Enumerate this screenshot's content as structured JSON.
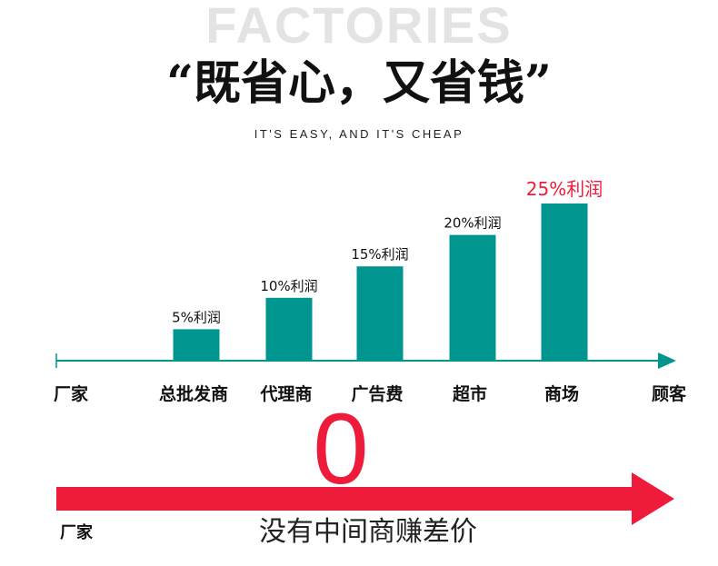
{
  "header": {
    "watermark": "FACTORIES",
    "title": "“既省心，又省钱”",
    "subtitle": "IT'S EASY, AND IT'S CHEAP"
  },
  "chart_data": {
    "type": "bar",
    "start_label": "厂家",
    "end_label": "顾客",
    "categories": [
      "总批发商",
      "代理商",
      "广告费",
      "超市",
      "商场"
    ],
    "values": [
      5,
      10,
      15,
      20,
      25
    ],
    "data_labels": [
      "5%利润",
      "10%利润",
      "15%利润",
      "20%利润",
      "25%利润"
    ],
    "ylim": [
      0,
      25
    ],
    "bar_color": "#00968f",
    "highlight_color": "#ee1c3a",
    "highlight_index": 4,
    "grid": false
  },
  "bottom": {
    "value": "0",
    "start_label": "厂家",
    "caption": "没有中间商赚差价",
    "arrow_color": "#ee1c3a"
  }
}
